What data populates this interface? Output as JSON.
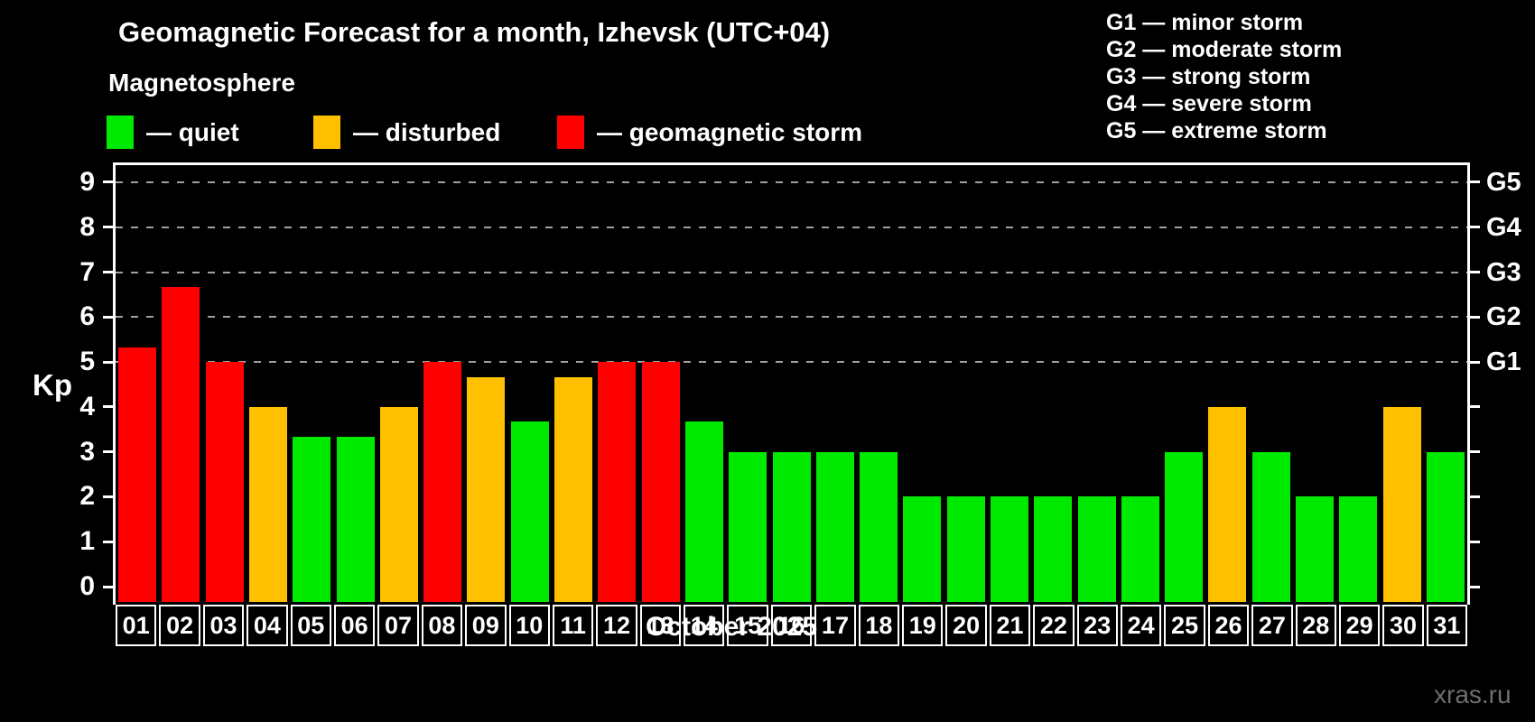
{
  "header": {
    "title": "Geomagnetic Forecast for a month, Izhevsk (UTC+04)",
    "subtitle": "Magnetosphere"
  },
  "legend": {
    "items": [
      {
        "name": "quiet",
        "label": "— quiet",
        "color": "#00ea00"
      },
      {
        "name": "disturbed",
        "label": "— disturbed",
        "color": "#ffc000"
      },
      {
        "name": "storm",
        "label": "— geomagnetic storm",
        "color": "#ff0000"
      }
    ]
  },
  "g_legend": {
    "items": [
      "G1 — minor storm",
      "G2 — moderate storm",
      "G3 — strong storm",
      "G4 — severe storm",
      "G5 — extreme storm"
    ]
  },
  "axes": {
    "y_label": "Kp",
    "y_ticks": [
      "0",
      "1",
      "2",
      "3",
      "4",
      "5",
      "6",
      "7",
      "8",
      "9"
    ],
    "right_ticks": [
      {
        "label": "G1",
        "kp": 5
      },
      {
        "label": "G2",
        "kp": 6
      },
      {
        "label": "G3",
        "kp": 7
      },
      {
        "label": "G4",
        "kp": 8
      },
      {
        "label": "G5",
        "kp": 9
      }
    ],
    "x_label": "October 2025"
  },
  "watermark": "xras.ru",
  "colors": {
    "quiet": "#00ea00",
    "disturbed": "#ffc000",
    "storm": "#ff0000",
    "grid": "#a0a0a0",
    "axis": "#ffffff",
    "background": "#000000",
    "watermark": "#6e6e6e"
  },
  "chart_data": {
    "type": "bar",
    "title": "Geomagnetic Forecast for a month, Izhevsk (UTC+04)",
    "subtitle": "Magnetosphere",
    "xlabel": "October 2025",
    "ylabel": "Kp",
    "ylim": [
      0,
      9
    ],
    "grid": "dashed horizontal lines at Kp 5-9 (G1-G5)",
    "legend_position": "top",
    "categories": [
      "01",
      "02",
      "03",
      "04",
      "05",
      "06",
      "07",
      "08",
      "09",
      "10",
      "11",
      "12",
      "13",
      "14",
      "15",
      "16",
      "17",
      "18",
      "19",
      "20",
      "21",
      "22",
      "23",
      "24",
      "25",
      "26",
      "27",
      "28",
      "29",
      "30",
      "31"
    ],
    "values": [
      5.33,
      6.67,
      5,
      4,
      3.33,
      3.33,
      4,
      5,
      4.67,
      3.67,
      4.67,
      5,
      5,
      3.67,
      3,
      3,
      3,
      3,
      2,
      2,
      2,
      2,
      2,
      2,
      3,
      4,
      3,
      2,
      2,
      4,
      3
    ],
    "statuses": [
      "storm",
      "storm",
      "storm",
      "disturbed",
      "quiet",
      "quiet",
      "disturbed",
      "storm",
      "disturbed",
      "quiet",
      "disturbed",
      "storm",
      "storm",
      "quiet",
      "quiet",
      "quiet",
      "quiet",
      "quiet",
      "quiet",
      "quiet",
      "quiet",
      "quiet",
      "quiet",
      "quiet",
      "quiet",
      "disturbed",
      "quiet",
      "quiet",
      "quiet",
      "disturbed",
      "quiet"
    ]
  }
}
